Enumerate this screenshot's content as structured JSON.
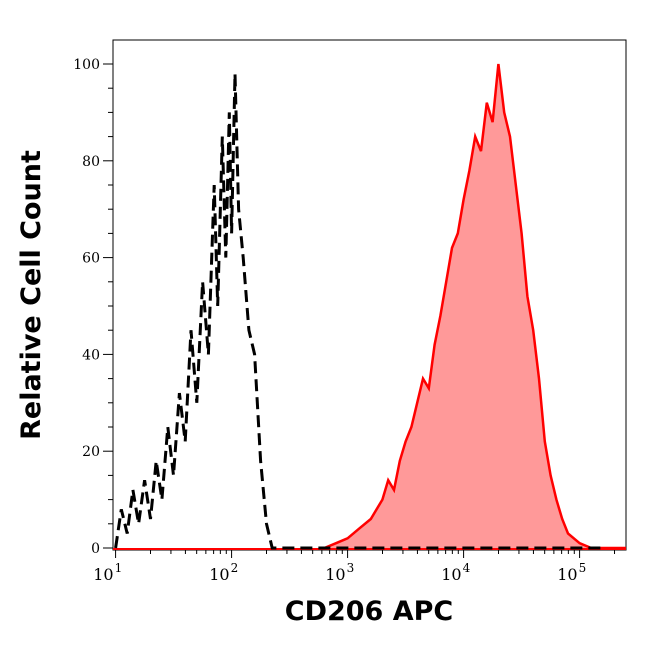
{
  "chart_data": {
    "type": "area",
    "xlabel": "CD206 APC",
    "ylabel": "Relative Cell Count",
    "xscale": "log",
    "xlim": [
      9.5,
      251189
    ],
    "ylim": [
      0,
      105
    ],
    "x_ticks": [
      {
        "base": "10",
        "exp": "1",
        "value": 10
      },
      {
        "base": "10",
        "exp": "2",
        "value": 100
      },
      {
        "base": "10",
        "exp": "3",
        "value": 1000
      },
      {
        "base": "10",
        "exp": "4",
        "value": 10000
      },
      {
        "base": "10",
        "exp": "5",
        "value": 100000
      }
    ],
    "y_ticks": [
      "0",
      "20",
      "40",
      "60",
      "80",
      "100"
    ],
    "grid": false,
    "legend": "none",
    "series": [
      {
        "style": "dashed line",
        "color": "#000000",
        "x": [
          10,
          11.2,
          12.6,
          14.1,
          15.8,
          17.8,
          20,
          22.4,
          25.1,
          28.2,
          31.6,
          35.5,
          39.8,
          44.7,
          50.1,
          56.2,
          63.1,
          70.8,
          75.9,
          83.2,
          89.1,
          95.5,
          100,
          107,
          115,
          126,
          141,
          158,
          178,
          200,
          224,
          316,
          1000,
          10000,
          158000
        ],
        "y": [
          0,
          8,
          3,
          12,
          5,
          14,
          6,
          18,
          10,
          25,
          15,
          32,
          22,
          45,
          30,
          55,
          40,
          75,
          50,
          85,
          60,
          90,
          65,
          98,
          70,
          60,
          45,
          40,
          18,
          5,
          0,
          0,
          0,
          0,
          0
        ]
      },
      {
        "style": "filled line",
        "color": "#ff0000",
        "fill": "#ff9999",
        "x": [
          631,
          794,
          1000,
          1259,
          1585,
          1995,
          2239,
          2512,
          2818,
          3162,
          3548,
          3981,
          4467,
          5012,
          5623,
          6310,
          7079,
          7943,
          8913,
          10000,
          11220,
          12589,
          14125,
          15849,
          17783,
          19953,
          22387,
          25119,
          28184,
          31623,
          35481,
          39811,
          44668,
          50119,
          56234,
          63096,
          70795,
          79433,
          100000,
          125893,
          251189
        ],
        "y": [
          0,
          1,
          2,
          4,
          6,
          10,
          14,
          12,
          18,
          22,
          25,
          30,
          35,
          33,
          42,
          48,
          55,
          62,
          65,
          72,
          78,
          85,
          82,
          92,
          88,
          100,
          90,
          85,
          75,
          65,
          52,
          45,
          35,
          22,
          15,
          10,
          6,
          3,
          1,
          0,
          0
        ]
      }
    ]
  }
}
